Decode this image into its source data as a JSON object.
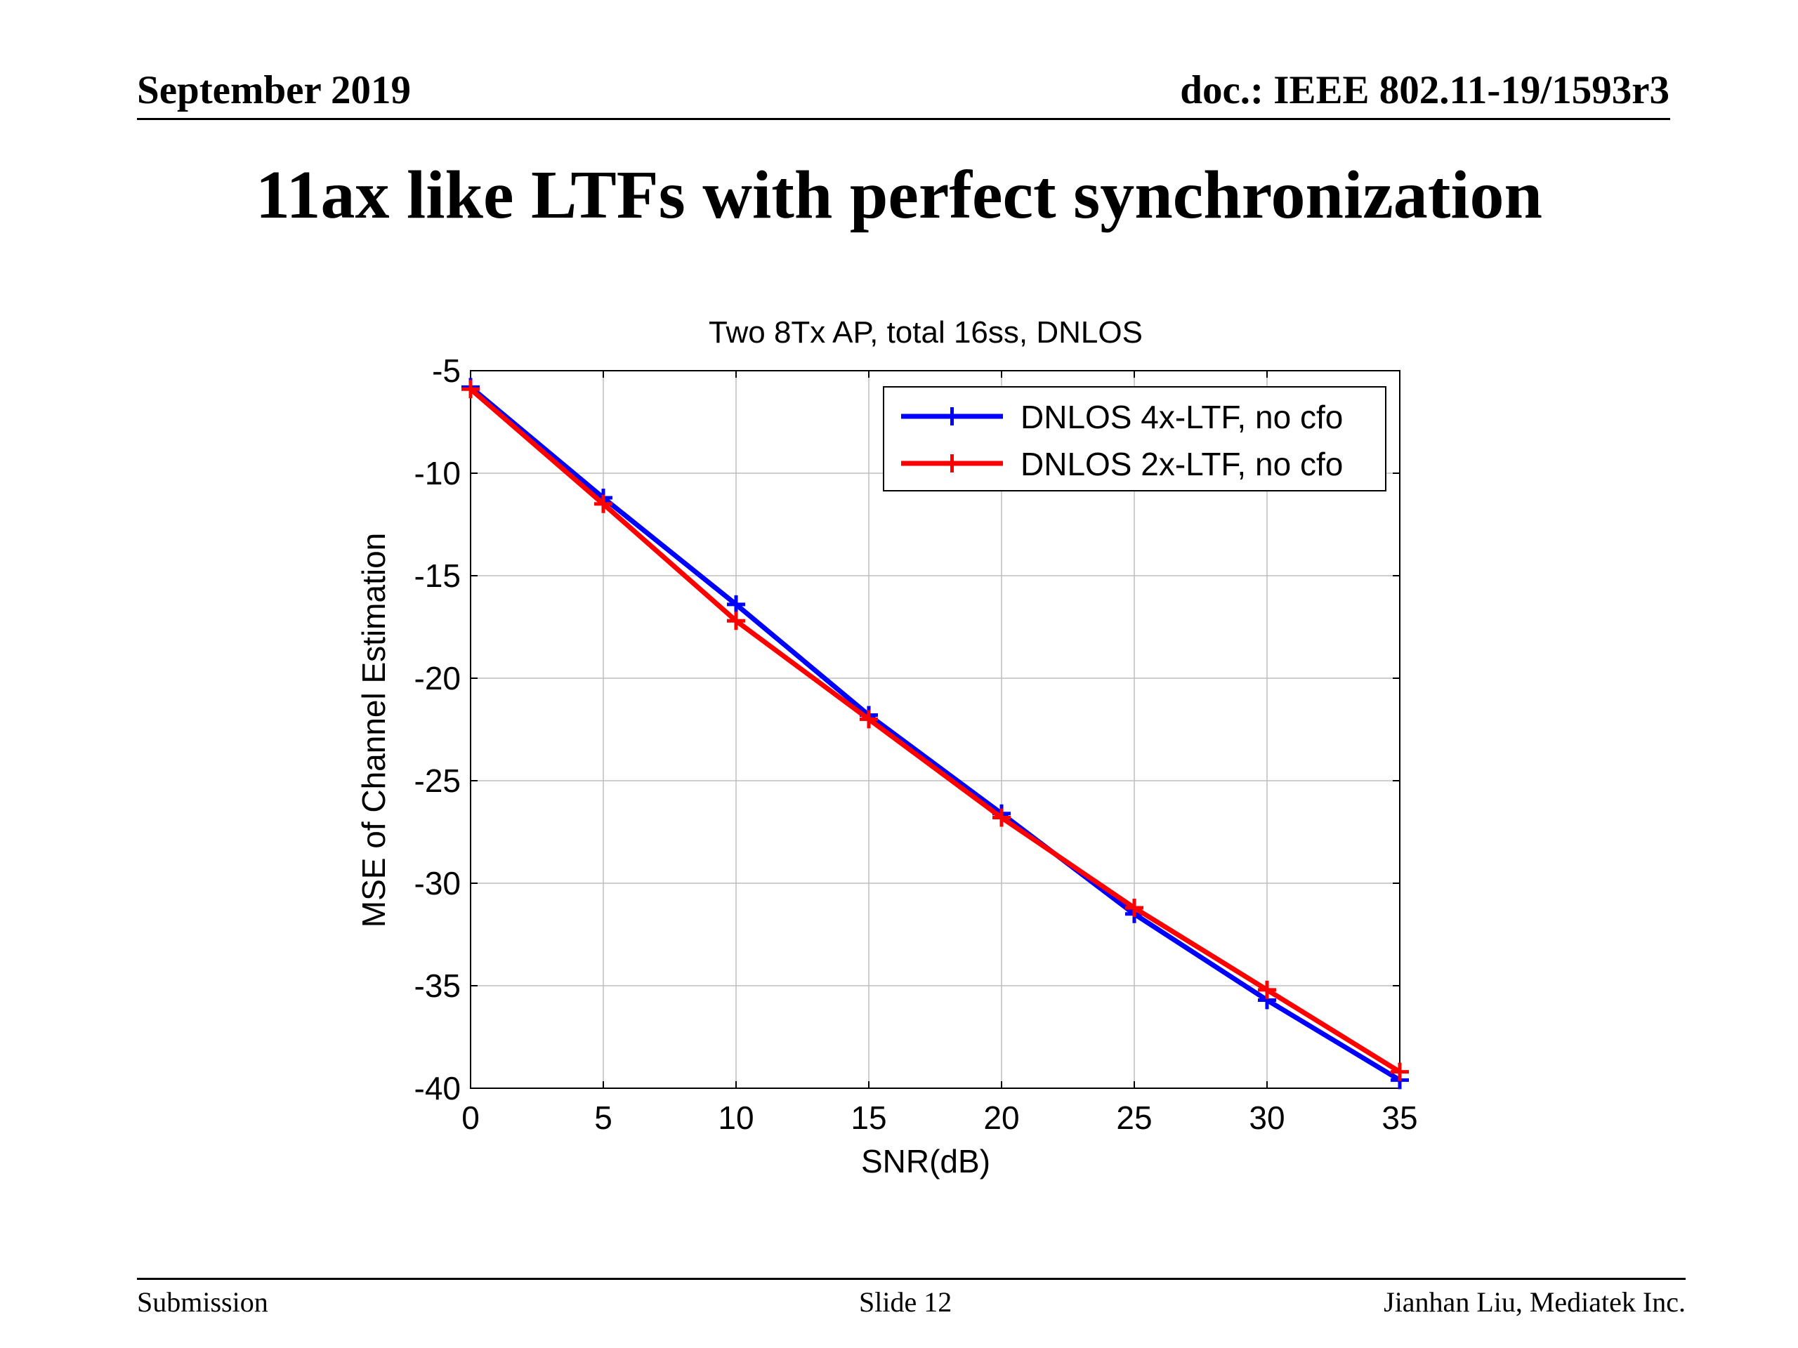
{
  "header": {
    "date": "September 2019",
    "doc_id": "doc.: IEEE 802.11-19/1593r3"
  },
  "slide": {
    "title": "11ax like LTFs with perfect synchronization"
  },
  "footer": {
    "left": "Submission",
    "center": "Slide 12",
    "right": "Jianhan Liu, Mediatek Inc."
  },
  "chart_data": {
    "type": "line",
    "title": "Two 8Tx AP, total 16ss, DNLOS",
    "xlabel": "SNR(dB)",
    "ylabel": "MSE of Channel Estimation",
    "xlim": [
      0,
      35
    ],
    "ylim": [
      -40,
      -5
    ],
    "xticks": [
      0,
      5,
      10,
      15,
      20,
      25,
      30,
      35
    ],
    "yticks": [
      -5,
      -10,
      -15,
      -20,
      -25,
      -30,
      -35,
      -40
    ],
    "grid": true,
    "legend_position": "top-right",
    "x": [
      0,
      5,
      10,
      15,
      20,
      25,
      30,
      35
    ],
    "series": [
      {
        "name": "DNLOS 4x-LTF, no cfo",
        "color": "#0000ff",
        "marker": "plus",
        "values": [
          -5.8,
          -11.2,
          -16.4,
          -21.8,
          -26.6,
          -31.5,
          -35.7,
          -39.6
        ]
      },
      {
        "name": "DNLOS 2x-LTF, no cfo",
        "color": "#ff0000",
        "marker": "plus",
        "values": [
          -5.9,
          -11.5,
          -17.2,
          -22.0,
          -26.8,
          -31.2,
          -35.2,
          -39.2
        ]
      }
    ]
  }
}
